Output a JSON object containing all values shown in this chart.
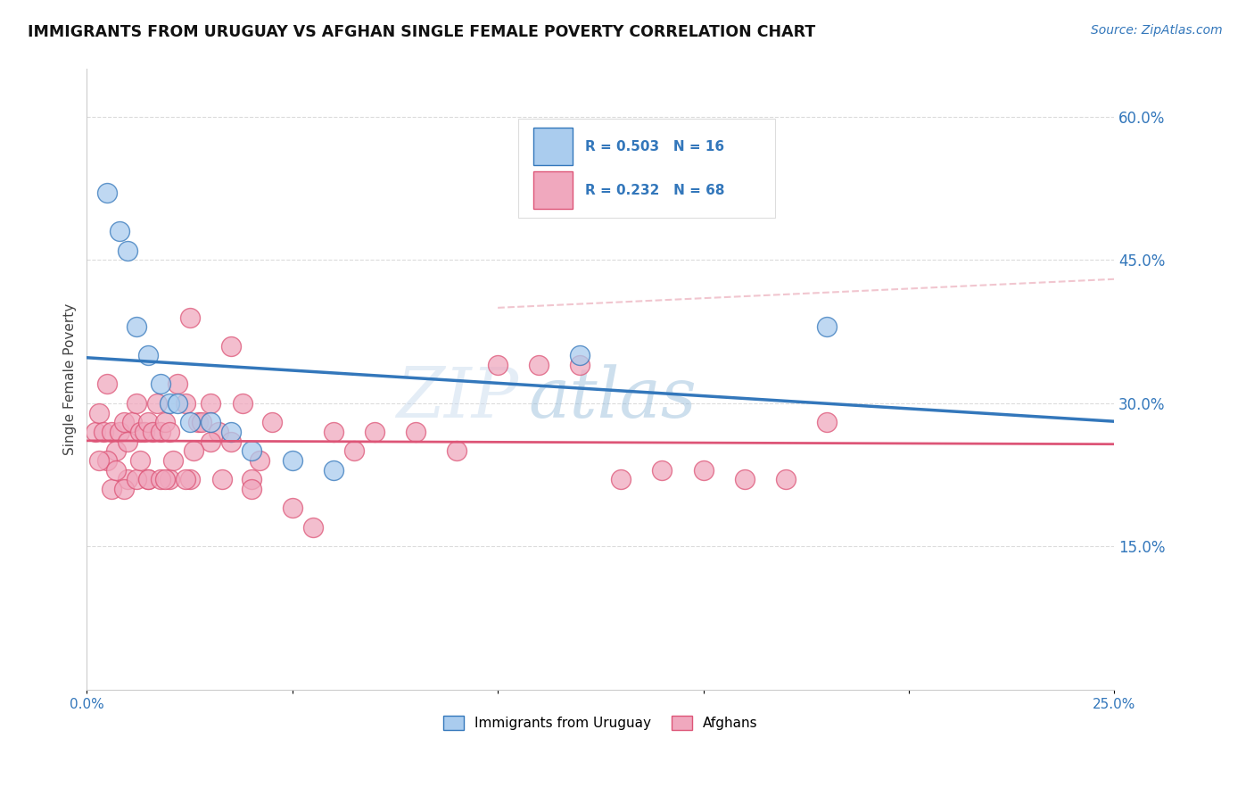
{
  "title": "IMMIGRANTS FROM URUGUAY VS AFGHAN SINGLE FEMALE POVERTY CORRELATION CHART",
  "source": "Source: ZipAtlas.com",
  "ylabel": "Single Female Poverty",
  "legend_label1": "Immigrants from Uruguay",
  "legend_label2": "Afghans",
  "R1": 0.503,
  "N1": 16,
  "R2": 0.232,
  "N2": 68,
  "xmin": 0.0,
  "xmax": 0.25,
  "ymin": 0.0,
  "ymax": 0.65,
  "yticks": [
    0.15,
    0.3,
    0.45,
    0.6
  ],
  "ytick_labels": [
    "15.0%",
    "30.0%",
    "45.0%",
    "60.0%"
  ],
  "xticks": [
    0.0,
    0.05,
    0.1,
    0.15,
    0.2,
    0.25
  ],
  "xtick_labels": [
    "0.0%",
    "",
    "",
    "",
    "",
    "25.0%"
  ],
  "color1": "#aaccee",
  "color2": "#f0a8be",
  "line1_color": "#3377bb",
  "line2_color": "#dd5577",
  "background_color": "#ffffff",
  "uruguay_x": [
    0.005,
    0.008,
    0.01,
    0.012,
    0.015,
    0.018,
    0.02,
    0.022,
    0.025,
    0.03,
    0.035,
    0.04,
    0.05,
    0.06,
    0.18,
    0.12
  ],
  "uruguay_y": [
    0.52,
    0.48,
    0.46,
    0.38,
    0.35,
    0.32,
    0.3,
    0.3,
    0.28,
    0.28,
    0.27,
    0.25,
    0.24,
    0.23,
    0.38,
    0.35
  ],
  "afghan_x": [
    0.002,
    0.003,
    0.004,
    0.005,
    0.006,
    0.007,
    0.008,
    0.009,
    0.01,
    0.011,
    0.012,
    0.013,
    0.014,
    0.015,
    0.016,
    0.017,
    0.018,
    0.019,
    0.02,
    0.022,
    0.024,
    0.025,
    0.027,
    0.028,
    0.03,
    0.032,
    0.035,
    0.038,
    0.04,
    0.042,
    0.045,
    0.05,
    0.055,
    0.06,
    0.065,
    0.07,
    0.08,
    0.09,
    0.1,
    0.11,
    0.12,
    0.13,
    0.14,
    0.15,
    0.16,
    0.17,
    0.18,
    0.005,
    0.01,
    0.015,
    0.02,
    0.025,
    0.03,
    0.035,
    0.04,
    0.003,
    0.006,
    0.009,
    0.012,
    0.015,
    0.018,
    0.021,
    0.024,
    0.007,
    0.013,
    0.019,
    0.026,
    0.033
  ],
  "afghan_y": [
    0.27,
    0.29,
    0.27,
    0.32,
    0.27,
    0.25,
    0.27,
    0.28,
    0.26,
    0.28,
    0.3,
    0.27,
    0.27,
    0.28,
    0.27,
    0.3,
    0.27,
    0.28,
    0.27,
    0.32,
    0.3,
    0.39,
    0.28,
    0.28,
    0.3,
    0.27,
    0.36,
    0.3,
    0.22,
    0.24,
    0.28,
    0.19,
    0.17,
    0.27,
    0.25,
    0.27,
    0.27,
    0.25,
    0.34,
    0.34,
    0.34,
    0.22,
    0.23,
    0.23,
    0.22,
    0.22,
    0.28,
    0.24,
    0.22,
    0.22,
    0.22,
    0.22,
    0.26,
    0.26,
    0.21,
    0.24,
    0.21,
    0.21,
    0.22,
    0.22,
    0.22,
    0.24,
    0.22,
    0.23,
    0.24,
    0.22,
    0.25,
    0.22
  ]
}
